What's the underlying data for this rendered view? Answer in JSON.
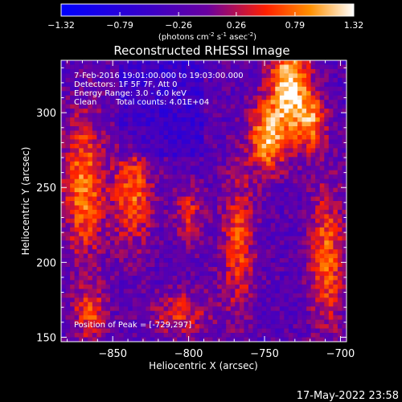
{
  "chart_data": {
    "type": "heatmap",
    "title": "Reconstructed RHESSI Image",
    "xlabel": "Heliocentric X (arcsec)",
    "ylabel": "Heliocentric Y (arcsec)",
    "xlim": [
      -884,
      -696
    ],
    "ylim": [
      147,
      335
    ],
    "xticks": [
      -850,
      -800,
      -750,
      -700
    ],
    "yticks": [
      150,
      200,
      250,
      300
    ],
    "colorbar": {
      "ticks": [
        "-1.32",
        "-0.79",
        "-0.26",
        "0.26",
        "0.79",
        "1.32"
      ],
      "range": [
        -1.32,
        1.32
      ],
      "unit_parts": [
        "(photons cm",
        "-2",
        " s",
        "-1",
        " asec",
        "-2",
        ")"
      ]
    },
    "annotations": {
      "time_range": "7-Feb-2016 19:01:00.000 to 19:03:00.000",
      "detectors": "Detectors: 1F 5F 7F, Att 0",
      "energy": "Energy Range: 3.0 - 6.0 keV",
      "method": "Clean",
      "counts": "Total counts: 4.01E+04",
      "peak": "Position of Peak = [-729,297]"
    },
    "peak_position": [
      -729,
      297
    ],
    "grid": false,
    "timestamp": "17-May-2022 23:58",
    "colors": {
      "low": "#0000ff",
      "mid": "#4b0082",
      "high": "#ff0000",
      "max": "#ffffff"
    }
  }
}
